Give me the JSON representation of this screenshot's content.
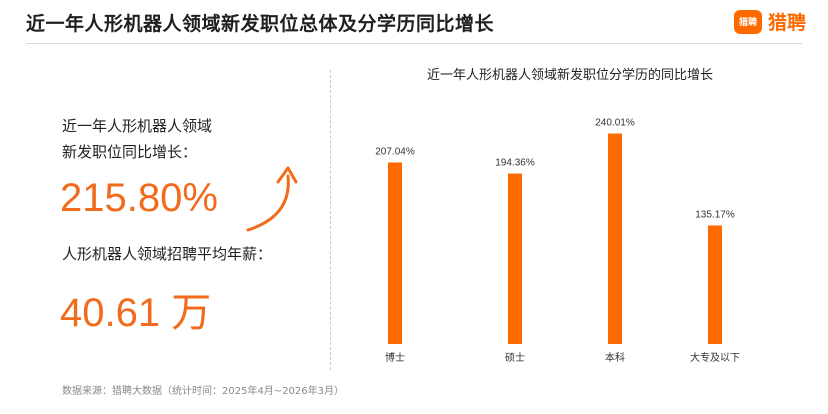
{
  "header": {
    "title": "近一年人形机器人领域新发职位总体及分学历同比增长",
    "logo_badge": "猎聘",
    "logo_text": "猎聘"
  },
  "summary": {
    "growth_label_line1": "近一年人形机器人领域",
    "growth_label_line2": "新发职位同比增长：",
    "growth_value": "215.80%",
    "salary_label": "人形机器人领域招聘平均年薪：",
    "salary_value": "40.61 万"
  },
  "colors": {
    "accent": "#f26a1b",
    "bar": "#ff6a00"
  },
  "icons": {
    "growth_arrow": "curved-up-arrow-icon"
  },
  "chart_data": {
    "type": "bar",
    "title": "近一年人形机器人领域新发职位分学历的同比增长",
    "categories": [
      "博士",
      "硕士",
      "本科",
      "大专及以下"
    ],
    "values": [
      207.04,
      194.36,
      240.01,
      135.17
    ],
    "value_labels": [
      "207.04%",
      "194.36%",
      "240.01%",
      "135.17%"
    ],
    "ylim": [
      0,
      260
    ],
    "grid": false,
    "xlabel": "",
    "ylabel": ""
  },
  "footer": {
    "source": "数据来源：猎聘大数据（统计时间：2025年4月~2026年3月）"
  }
}
